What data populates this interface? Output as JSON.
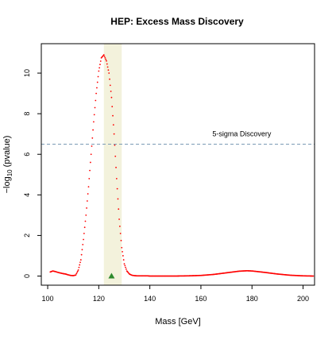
{
  "chart_data": {
    "type": "scatter",
    "title": "HEP: Excess Mass Discovery",
    "xlabel": "Mass [GeV]",
    "ylabel": "−log",
    "ylabel_sub": "10",
    "ylabel_tail": " (pvalue)",
    "xlim": [
      97.5,
      204.5
    ],
    "ylim": [
      -0.45,
      11.45
    ],
    "xticks": [
      100,
      120,
      140,
      160,
      180,
      200
    ],
    "yticks": [
      0,
      2,
      4,
      6,
      8,
      10
    ],
    "grid": false,
    "threshold": {
      "value": 6.5,
      "label": "5-sigma Discovery",
      "color": "#7a9bb5"
    },
    "signal_band": {
      "x_range": [
        122,
        129
      ],
      "color": "#f3f2dc"
    },
    "marker": {
      "x": 125,
      "y": 0,
      "color": "#2d8a2d"
    },
    "series": [
      {
        "color": "#ff0000",
        "x": [
          101,
          102,
          103,
          104,
          105,
          106,
          107,
          108,
          109,
          110,
          111,
          112,
          113,
          114,
          115,
          116,
          117,
          118,
          119,
          120,
          121,
          122,
          123,
          124,
          125,
          126,
          127,
          128,
          129,
          130,
          131,
          132,
          133,
          134,
          135,
          136,
          137,
          138,
          139,
          140,
          142,
          145,
          150,
          155,
          160,
          165,
          170,
          175,
          178,
          180,
          185,
          190,
          195,
          200,
          204
        ],
        "y": [
          0.2,
          0.25,
          0.22,
          0.18,
          0.15,
          0.12,
          0.1,
          0.06,
          0.03,
          0.02,
          0.05,
          0.3,
          0.8,
          1.8,
          3.0,
          4.4,
          6.0,
          7.6,
          9.0,
          10.1,
          10.75,
          10.9,
          10.6,
          10.0,
          8.8,
          7.0,
          4.8,
          2.8,
          1.4,
          0.6,
          0.25,
          0.1,
          0.04,
          0.02,
          0.01,
          0.01,
          0.01,
          0.01,
          0.01,
          0.0,
          0.0,
          0.0,
          0.0,
          0.01,
          0.03,
          0.08,
          0.16,
          0.24,
          0.26,
          0.25,
          0.18,
          0.1,
          0.04,
          0.01,
          0.0
        ]
      }
    ]
  }
}
